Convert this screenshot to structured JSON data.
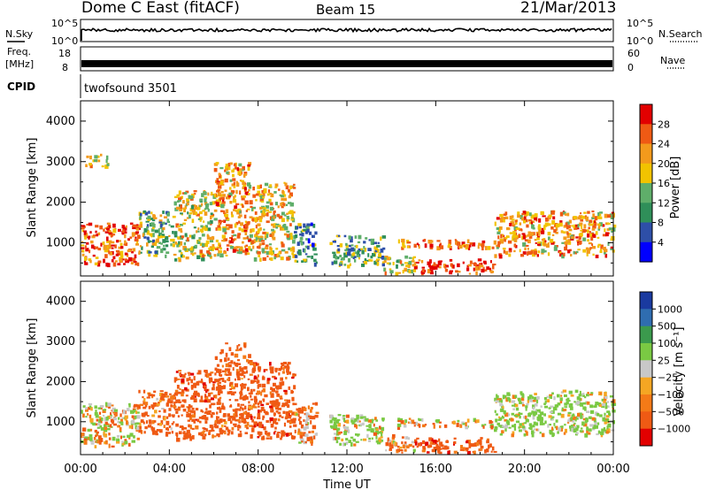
{
  "header": {
    "title": "Dome C East (fitACF)",
    "beam": "Beam 15",
    "date": "21/Mar/2013"
  },
  "top_panels": {
    "nsky_label": "N.Sky",
    "nsky_ticks": [
      "10^5",
      "10^0"
    ],
    "nsearch_label": "N.Search",
    "nsearch_ticks": [
      "10^5",
      "10^0"
    ],
    "freq_label": "Freq.",
    "freq_unit": "[MHz]",
    "freq_ticks": [
      "18",
      "8"
    ],
    "nave_label": "Nave",
    "nave_ticks": [
      "60",
      "0"
    ],
    "cpid_label": "CPID",
    "cpid_value": "twofsound 3501"
  },
  "colors": {
    "power_scale": [
      "#0000ff",
      "#2e4fa8",
      "#2f8f59",
      "#5fae6a",
      "#f2c300",
      "#f39a1c",
      "#ef5a14",
      "#e20000"
    ],
    "velocity_scale": [
      "#e20000",
      "#ef5a14",
      "#f47a17",
      "#f5a623",
      "#c8c8c8",
      "#7ac943",
      "#3b9a4d",
      "#2f6db0",
      "#1a3aa0"
    ]
  },
  "chart_data": [
    {
      "type": "heatmap",
      "name": "power-panel",
      "xlabel": "",
      "ylabel": "Slant Range [km]",
      "x_ticks": [
        "00:00",
        "04:00",
        "08:00",
        "12:00",
        "16:00",
        "20:00",
        "00:00"
      ],
      "xlim": [
        0,
        24
      ],
      "y_ticks": [
        "1000",
        "2000",
        "3000",
        "4000"
      ],
      "ylim": [
        180,
        4500
      ],
      "colorbar": {
        "label": "Power [dB]",
        "ticks": [
          "4",
          "8",
          "12",
          "16",
          "20",
          "24",
          "28"
        ],
        "range": [
          0,
          32
        ]
      },
      "regions": [
        {
          "t": [
            0.0,
            2.6
          ],
          "r": [
            500,
            1500
          ],
          "value": 26
        },
        {
          "t": [
            0.2,
            1.2
          ],
          "r": [
            2900,
            3200
          ],
          "value": 20
        },
        {
          "t": [
            2.6,
            4.2
          ],
          "r": [
            700,
            1800
          ],
          "value": 14
        },
        {
          "t": [
            4.2,
            6.0
          ],
          "r": [
            600,
            2300
          ],
          "value": 18
        },
        {
          "t": [
            6.0,
            7.6
          ],
          "r": [
            700,
            3000
          ],
          "value": 22
        },
        {
          "t": [
            7.6,
            9.6
          ],
          "r": [
            600,
            2500
          ],
          "value": 20
        },
        {
          "t": [
            9.6,
            10.6
          ],
          "r": [
            500,
            1500
          ],
          "value": 10
        },
        {
          "t": [
            11.2,
            13.6
          ],
          "r": [
            450,
            1200
          ],
          "value": 12
        },
        {
          "t": [
            13.6,
            15.0
          ],
          "r": [
            250,
            700
          ],
          "value": 18
        },
        {
          "t": [
            15.0,
            18.6
          ],
          "r": [
            250,
            620
          ],
          "value": 28
        },
        {
          "t": [
            14.2,
            18.6
          ],
          "r": [
            900,
            1100
          ],
          "value": 24
        },
        {
          "t": [
            18.6,
            24.0
          ],
          "r": [
            700,
            1800
          ],
          "value": 22
        }
      ]
    },
    {
      "type": "heatmap",
      "name": "velocity-panel",
      "xlabel": "Time UT",
      "ylabel": "Slant Range [km]",
      "x_ticks": [
        "00:00",
        "04:00",
        "08:00",
        "12:00",
        "16:00",
        "20:00",
        "00:00"
      ],
      "xlim": [
        0,
        24
      ],
      "y_ticks": [
        "1000",
        "2000",
        "3000",
        "4000"
      ],
      "ylim": [
        180,
        4500
      ],
      "colorbar": {
        "label": "Velocity [m s⁻¹]",
        "ticks": [
          "1000",
          "500",
          "100",
          "25",
          "−25",
          "−100",
          "−500",
          "−1000"
        ],
        "range": [
          -1000,
          1000
        ]
      },
      "regions": [
        {
          "t": [
            0.0,
            2.6
          ],
          "r": [
            400,
            1500
          ],
          "value": 25
        },
        {
          "t": [
            2.6,
            4.2
          ],
          "r": [
            700,
            1800
          ],
          "value": -200
        },
        {
          "t": [
            4.2,
            6.0
          ],
          "r": [
            600,
            2300
          ],
          "value": -300
        },
        {
          "t": [
            6.0,
            7.6
          ],
          "r": [
            700,
            3000
          ],
          "value": -250
        },
        {
          "t": [
            7.6,
            9.6
          ],
          "r": [
            600,
            2500
          ],
          "value": -300
        },
        {
          "t": [
            9.6,
            10.6
          ],
          "r": [
            500,
            1500
          ],
          "value": -100
        },
        {
          "t": [
            11.2,
            13.6
          ],
          "r": [
            450,
            1200
          ],
          "value": 100
        },
        {
          "t": [
            13.6,
            15.0
          ],
          "r": [
            250,
            700
          ],
          "value": -100
        },
        {
          "t": [
            15.0,
            18.6
          ],
          "r": [
            250,
            620
          ],
          "value": -300
        },
        {
          "t": [
            14.2,
            18.6
          ],
          "r": [
            900,
            1100
          ],
          "value": 0
        },
        {
          "t": [
            18.6,
            24.0
          ],
          "r": [
            700,
            1800
          ],
          "value": 150
        }
      ]
    }
  ]
}
